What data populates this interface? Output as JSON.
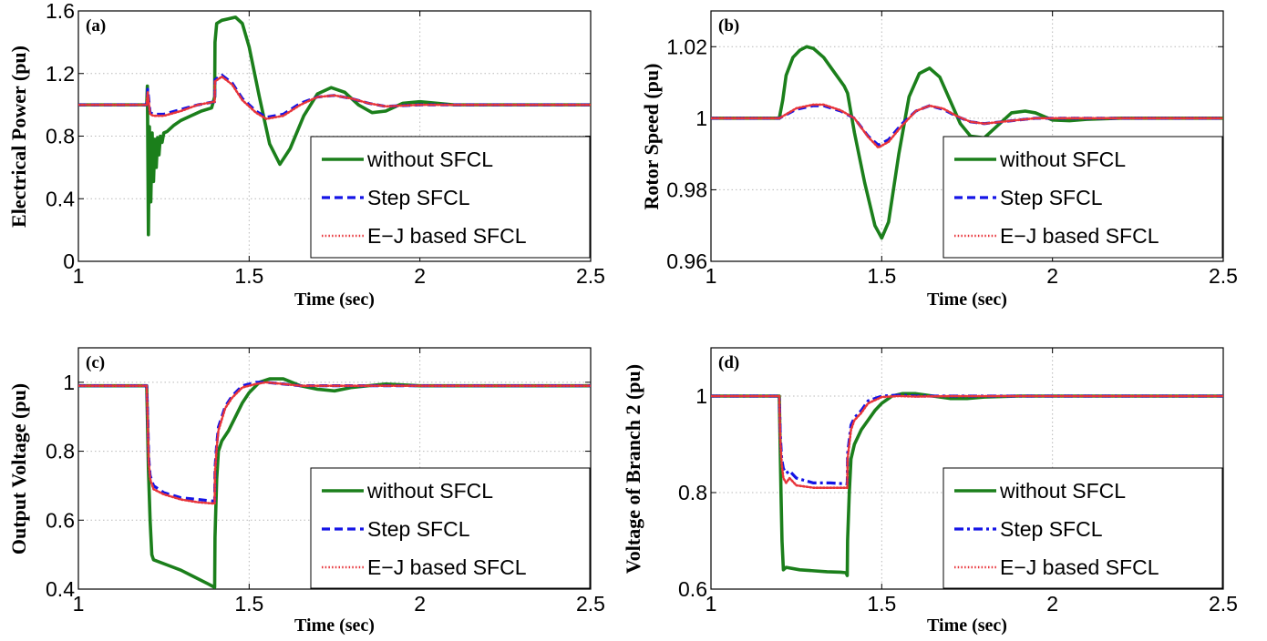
{
  "colors": {
    "without": "#1b7f1b",
    "step": "#1414e6",
    "ej": "#e8343a"
  },
  "chart_data": [
    {
      "type": "line",
      "panel_label": "(a)",
      "xlabel": "Time (sec)",
      "ylabel": "Electrical Power (pu)",
      "xlim": [
        1,
        2.5
      ],
      "ylim": [
        0,
        1.6
      ],
      "xticks": [
        1,
        1.5,
        2,
        2.5
      ],
      "xtick_labels": [
        "1",
        "1.5",
        "2",
        "2.5"
      ],
      "yticks": [
        0,
        0.4,
        0.8,
        1.2,
        1.6
      ],
      "ytick_labels": [
        "0",
        "0.4",
        "0.8",
        "1.2",
        "1.6"
      ],
      "grid": true,
      "legend_position": "lower-right",
      "series": [
        {
          "name": "without SFCL",
          "style": "solid",
          "x": [
            1,
            1.2,
            1.202,
            1.205,
            1.208,
            1.212,
            1.216,
            1.22,
            1.224,
            1.228,
            1.232,
            1.236,
            1.24,
            1.245,
            1.25,
            1.26,
            1.28,
            1.3,
            1.33,
            1.36,
            1.39,
            1.399,
            1.4,
            1.405,
            1.42,
            1.44,
            1.46,
            1.48,
            1.5,
            1.53,
            1.56,
            1.59,
            1.62,
            1.66,
            1.7,
            1.74,
            1.78,
            1.82,
            1.86,
            1.9,
            1.95,
            2,
            2.05,
            2.1,
            2.2,
            2.3,
            2.5
          ],
          "y": [
            1.0,
            1.0,
            1.12,
            0.17,
            0.86,
            0.38,
            0.82,
            0.51,
            0.78,
            0.6,
            0.79,
            0.68,
            0.8,
            0.76,
            0.82,
            0.83,
            0.87,
            0.9,
            0.93,
            0.96,
            0.98,
            1.05,
            1.4,
            1.52,
            1.54,
            1.55,
            1.56,
            1.52,
            1.37,
            1.05,
            0.75,
            0.62,
            0.72,
            0.93,
            1.07,
            1.11,
            1.08,
            1.0,
            0.95,
            0.96,
            1.01,
            1.02,
            1.01,
            1.0,
            1.0,
            1.0,
            1.0
          ]
        },
        {
          "name": "Step SFCL",
          "style": "dash",
          "x": [
            1,
            1.2,
            1.203,
            1.21,
            1.22,
            1.25,
            1.3,
            1.35,
            1.399,
            1.4,
            1.42,
            1.45,
            1.48,
            1.52,
            1.55,
            1.6,
            1.65,
            1.7,
            1.75,
            1.8,
            1.85,
            1.9,
            2,
            2.1,
            2.2,
            2.5
          ],
          "y": [
            1.0,
            1.0,
            1.1,
            0.95,
            0.94,
            0.94,
            0.97,
            1.0,
            1.02,
            1.16,
            1.19,
            1.14,
            1.04,
            0.96,
            0.92,
            0.94,
            1.01,
            1.05,
            1.06,
            1.04,
            1.01,
            0.99,
            1.0,
            1.0,
            1.0,
            1.0
          ]
        },
        {
          "name": "E−J based SFCL",
          "style": "dot",
          "x": [
            1,
            1.2,
            1.203,
            1.21,
            1.22,
            1.25,
            1.3,
            1.35,
            1.399,
            1.4,
            1.42,
            1.45,
            1.48,
            1.52,
            1.55,
            1.6,
            1.65,
            1.7,
            1.75,
            1.8,
            1.85,
            1.9,
            2,
            2.1,
            2.2,
            2.5
          ],
          "y": [
            1.0,
            1.0,
            1.08,
            0.94,
            0.93,
            0.93,
            0.96,
            1.0,
            1.02,
            1.15,
            1.18,
            1.13,
            1.03,
            0.95,
            0.91,
            0.93,
            1.0,
            1.05,
            1.06,
            1.04,
            1.01,
            0.99,
            1.0,
            1.0,
            1.0,
            1.0
          ]
        }
      ]
    },
    {
      "type": "line",
      "panel_label": "(b)",
      "xlabel": "Time (sec)",
      "ylabel": "Rotor Speed (pu)",
      "xlim": [
        1,
        2.5
      ],
      "ylim": [
        0.96,
        1.03
      ],
      "xticks": [
        1,
        1.5,
        2,
        2.5
      ],
      "xtick_labels": [
        "1",
        "1.5",
        "2",
        "2.5"
      ],
      "yticks": [
        0.96,
        0.98,
        1,
        1.02
      ],
      "ytick_labels": [
        "0.96",
        "0.98",
        "1",
        "1.02"
      ],
      "grid": true,
      "legend_position": "lower-right",
      "series": [
        {
          "name": "without SFCL",
          "style": "solid",
          "x": [
            1,
            1.2,
            1.21,
            1.22,
            1.24,
            1.26,
            1.28,
            1.3,
            1.33,
            1.36,
            1.39,
            1.4,
            1.42,
            1.45,
            1.48,
            1.5,
            1.52,
            1.55,
            1.58,
            1.61,
            1.64,
            1.67,
            1.7,
            1.73,
            1.76,
            1.8,
            1.84,
            1.88,
            1.92,
            1.95,
            2,
            2.05,
            2.1,
            2.2,
            2.3,
            2.5
          ],
          "y": [
            1.0,
            1.0,
            1.005,
            1.012,
            1.017,
            1.019,
            1.02,
            1.0195,
            1.017,
            1.013,
            1.009,
            1.007,
            0.996,
            0.982,
            0.97,
            0.9665,
            0.971,
            0.99,
            1.006,
            1.0125,
            1.014,
            1.0115,
            1.005,
            0.9985,
            0.995,
            0.9945,
            0.998,
            1.0015,
            1.002,
            1.0015,
            0.9995,
            0.9993,
            0.9997,
            1.0,
            1.0,
            1.0
          ]
        },
        {
          "name": "Step SFCL",
          "style": "dash",
          "x": [
            1,
            1.2,
            1.25,
            1.3,
            1.33,
            1.38,
            1.42,
            1.46,
            1.49,
            1.52,
            1.56,
            1.6,
            1.64,
            1.68,
            1.72,
            1.76,
            1.8,
            1.85,
            1.9,
            1.95,
            2,
            2.1,
            2.5
          ],
          "y": [
            1.0,
            1.0,
            1.0025,
            1.0035,
            1.0035,
            1.002,
            1.0,
            0.995,
            0.9925,
            0.994,
            0.9985,
            1.002,
            1.0035,
            1.0025,
            1.0005,
            0.999,
            0.9985,
            0.999,
            0.9995,
            1.0,
            1.0,
            1.0,
            1.0
          ]
        },
        {
          "name": "E−J based SFCL",
          "style": "dot",
          "x": [
            1,
            1.2,
            1.25,
            1.3,
            1.33,
            1.38,
            1.42,
            1.46,
            1.49,
            1.52,
            1.56,
            1.6,
            1.64,
            1.68,
            1.72,
            1.76,
            1.8,
            1.85,
            1.9,
            1.95,
            2,
            2.1,
            2.5
          ],
          "y": [
            1.0,
            1.0,
            1.0028,
            1.0038,
            1.0038,
            1.0022,
            1.0,
            0.9948,
            0.9918,
            0.9934,
            0.998,
            1.002,
            1.0035,
            1.0027,
            1.0006,
            0.999,
            0.9985,
            0.999,
            0.9995,
            1.0,
            1.0,
            1.0,
            1.0
          ]
        }
      ]
    },
    {
      "type": "line",
      "panel_label": "(c)",
      "xlabel": "Time (sec)",
      "ylabel": "Output Voltage (pu)",
      "xlim": [
        1,
        2.5
      ],
      "ylim": [
        0.4,
        1.1
      ],
      "xticks": [
        1,
        1.5,
        2,
        2.5
      ],
      "xtick_labels": [
        "1",
        "1.5",
        "2",
        "2.5"
      ],
      "yticks": [
        0.4,
        0.6,
        0.8,
        1
      ],
      "ytick_labels": [
        "0.4",
        "0.6",
        "0.8",
        "1"
      ],
      "grid": true,
      "legend_position": "lower-right",
      "series": [
        {
          "name": "without SFCL",
          "style": "solid",
          "x": [
            1,
            1.2,
            1.202,
            1.205,
            1.21,
            1.215,
            1.22,
            1.26,
            1.3,
            1.34,
            1.38,
            1.399,
            1.4,
            1.405,
            1.41,
            1.42,
            1.44,
            1.46,
            1.48,
            1.5,
            1.53,
            1.56,
            1.6,
            1.65,
            1.7,
            1.75,
            1.8,
            1.85,
            1.9,
            2,
            2.1,
            2.5
          ],
          "y": [
            0.99,
            0.99,
            0.9,
            0.75,
            0.6,
            0.5,
            0.485,
            0.47,
            0.455,
            0.435,
            0.415,
            0.405,
            0.55,
            0.72,
            0.8,
            0.83,
            0.86,
            0.9,
            0.94,
            0.97,
            1.0,
            1.01,
            1.01,
            0.99,
            0.98,
            0.975,
            0.985,
            0.99,
            0.995,
            0.99,
            0.99,
            0.99
          ]
        },
        {
          "name": "Step SFCL",
          "style": "dash",
          "x": [
            1,
            1.2,
            1.203,
            1.206,
            1.21,
            1.22,
            1.25,
            1.3,
            1.35,
            1.399,
            1.4,
            1.405,
            1.41,
            1.43,
            1.45,
            1.48,
            1.52,
            1.55,
            1.6,
            1.65,
            1.7,
            1.8,
            1.9,
            2,
            2.5
          ],
          "y": [
            0.99,
            0.99,
            0.9,
            0.78,
            0.73,
            0.7,
            0.68,
            0.665,
            0.66,
            0.655,
            0.75,
            0.82,
            0.87,
            0.93,
            0.96,
            0.99,
            1.0,
            1.0,
            0.995,
            0.99,
            0.99,
            0.99,
            0.99,
            0.99,
            0.99
          ]
        },
        {
          "name": "E−J based SFCL",
          "style": "dot",
          "x": [
            1,
            1.2,
            1.203,
            1.206,
            1.21,
            1.22,
            1.25,
            1.3,
            1.35,
            1.399,
            1.4,
            1.405,
            1.41,
            1.43,
            1.45,
            1.48,
            1.52,
            1.55,
            1.6,
            1.65,
            1.7,
            1.8,
            1.9,
            2,
            2.5
          ],
          "y": [
            0.99,
            0.99,
            0.89,
            0.77,
            0.72,
            0.69,
            0.675,
            0.66,
            0.652,
            0.648,
            0.74,
            0.81,
            0.86,
            0.925,
            0.955,
            0.985,
            0.995,
            1.0,
            0.995,
            0.99,
            0.99,
            0.99,
            0.99,
            0.99,
            0.99
          ]
        }
      ]
    },
    {
      "type": "line",
      "panel_label": "(d)",
      "xlabel": "Time (sec)",
      "ylabel": "Voltage of Branch 2 (pu)",
      "xlim": [
        1,
        2.5
      ],
      "ylim": [
        0.6,
        1.1
      ],
      "xticks": [
        1,
        1.5,
        2,
        2.5
      ],
      "xtick_labels": [
        "1",
        "1.5",
        "2",
        "2.5"
      ],
      "yticks": [
        0.6,
        0.8,
        1
      ],
      "ytick_labels": [
        "0.6",
        "0.8",
        "1"
      ],
      "grid": true,
      "legend_position": "lower-right",
      "series": [
        {
          "name": "without SFCL",
          "style": "solid",
          "x": [
            1,
            1.2,
            1.202,
            1.205,
            1.208,
            1.212,
            1.22,
            1.26,
            1.3,
            1.34,
            1.38,
            1.395,
            1.399,
            1.4,
            1.405,
            1.41,
            1.42,
            1.44,
            1.46,
            1.48,
            1.5,
            1.53,
            1.56,
            1.6,
            1.65,
            1.7,
            1.75,
            1.8,
            1.9,
            2,
            2.5
          ],
          "y": [
            1.0,
            1.0,
            0.92,
            0.8,
            0.7,
            0.64,
            0.645,
            0.64,
            0.638,
            0.636,
            0.635,
            0.634,
            0.628,
            0.7,
            0.8,
            0.87,
            0.9,
            0.93,
            0.95,
            0.97,
            0.985,
            1.0,
            1.005,
            1.005,
            1.0,
            0.995,
            0.995,
            0.998,
            1.0,
            1.0,
            1.0
          ]
        },
        {
          "name": "Step SFCL",
          "style": "dashdot",
          "x": [
            1,
            1.2,
            1.203,
            1.207,
            1.212,
            1.22,
            1.23,
            1.25,
            1.3,
            1.35,
            1.399,
            1.4,
            1.405,
            1.41,
            1.42,
            1.44,
            1.46,
            1.5,
            1.55,
            1.6,
            1.7,
            1.8,
            2,
            2.5
          ],
          "y": [
            1.0,
            1.0,
            0.92,
            0.87,
            0.85,
            0.84,
            0.845,
            0.83,
            0.82,
            0.82,
            0.818,
            0.88,
            0.91,
            0.94,
            0.955,
            0.97,
            0.99,
            1.0,
            1.002,
            1.0,
            1.0,
            1.0,
            1.0,
            1.0
          ]
        },
        {
          "name": "E−J based SFCL",
          "style": "dot",
          "x": [
            1,
            1.2,
            1.203,
            1.207,
            1.212,
            1.22,
            1.23,
            1.25,
            1.3,
            1.35,
            1.399,
            1.4,
            1.405,
            1.41,
            1.42,
            1.44,
            1.46,
            1.5,
            1.55,
            1.6,
            1.7,
            1.8,
            2,
            2.5
          ],
          "y": [
            1.0,
            1.0,
            0.91,
            0.86,
            0.83,
            0.82,
            0.83,
            0.815,
            0.81,
            0.81,
            0.81,
            0.87,
            0.9,
            0.93,
            0.95,
            0.965,
            0.985,
            0.998,
            1.0,
            0.999,
            1.0,
            1.0,
            1.0,
            1.0
          ]
        }
      ]
    }
  ]
}
